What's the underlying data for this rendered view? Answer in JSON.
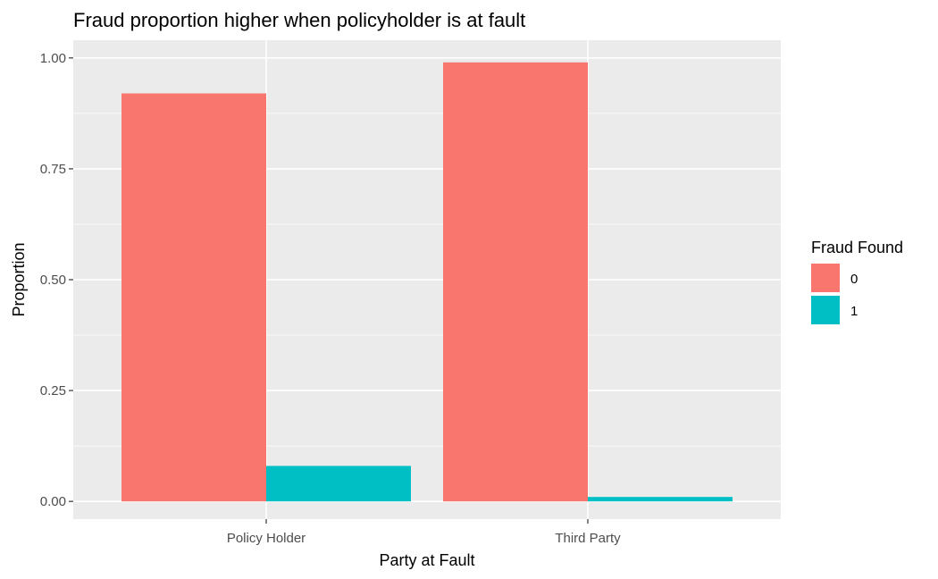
{
  "chart_data": {
    "type": "bar",
    "title": "Fraud proportion higher when policyholder is at fault",
    "xlabel": "Party at Fault",
    "ylabel": "Proportion",
    "categories": [
      "Policy Holder",
      "Third Party"
    ],
    "series": [
      {
        "name": "0",
        "values": [
          0.92,
          0.99
        ],
        "color": "#F8766D"
      },
      {
        "name": "1",
        "values": [
          0.08,
          0.01
        ],
        "color": "#00BFC4"
      }
    ],
    "ylim": [
      -0.04,
      1.04
    ],
    "yticks": [
      0.0,
      0.25,
      0.5,
      0.75,
      1.0
    ],
    "ytick_labels": [
      "0.00",
      "0.25",
      "0.50",
      "0.75",
      "1.00"
    ],
    "legend": {
      "title": "Fraud Found",
      "position": "right"
    },
    "grid": true,
    "panel_background": "#EBEBEB"
  }
}
